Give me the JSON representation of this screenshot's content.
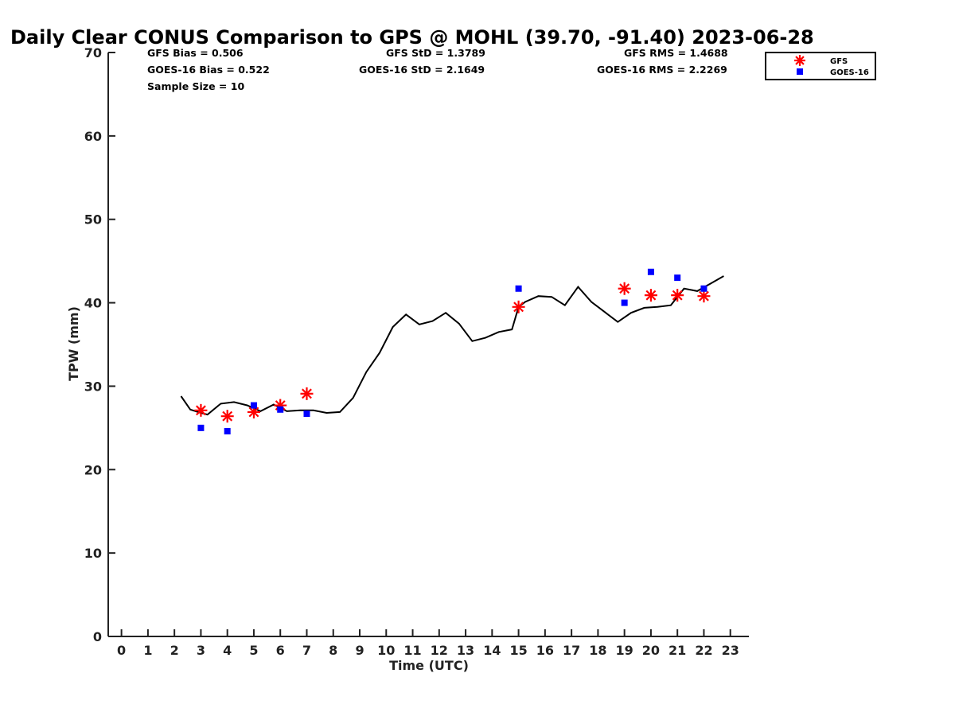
{
  "chart_data": {
    "type": "scatter",
    "title": "Daily Clear CONUS Comparison to GPS @ MOHL (39.70, -91.40) 2023-06-28",
    "xlabel": "Time (UTC)",
    "ylabel": "TPW (mm)",
    "xlim": [
      -0.5,
      23.7
    ],
    "ylim": [
      0,
      70
    ],
    "xticks": [
      0,
      1,
      2,
      3,
      4,
      5,
      6,
      7,
      8,
      9,
      10,
      11,
      12,
      13,
      14,
      15,
      16,
      17,
      18,
      19,
      20,
      21,
      22,
      23
    ],
    "yticks": [
      0,
      10,
      20,
      30,
      40,
      50,
      60,
      70
    ],
    "grid": false,
    "legend_position": "top-right-outside",
    "stats": {
      "gfs_bias": "GFS Bias = 0.506",
      "goes_bias": "GOES-16 Bias = 0.522",
      "sample_size": "Sample Size = 10",
      "gfs_std": "GFS StD = 1.3789",
      "goes_std": "GOES-16 StD = 2.1649",
      "gfs_rms": "GFS RMS = 1.4688",
      "goes_rms": "GOES-16 RMS = 2.2269"
    },
    "series": [
      {
        "name": "GFS",
        "marker": "asterisk",
        "color": "#ff0000",
        "points": [
          [
            3,
            27.1
          ],
          [
            4,
            26.4
          ],
          [
            5,
            26.9
          ],
          [
            6,
            27.7
          ],
          [
            7,
            29.1
          ],
          [
            15,
            39.5
          ],
          [
            19,
            41.7
          ],
          [
            20,
            40.9
          ],
          [
            21,
            40.9
          ],
          [
            22,
            40.8
          ]
        ]
      },
      {
        "name": "GOES-16",
        "marker": "square",
        "color": "#0000ff",
        "points": [
          [
            3,
            25.0
          ],
          [
            4,
            24.6
          ],
          [
            5,
            27.7
          ],
          [
            6,
            27.2
          ],
          [
            7,
            26.7
          ],
          [
            15,
            41.7
          ],
          [
            19,
            40.0
          ],
          [
            20,
            43.7
          ],
          [
            21,
            43.0
          ],
          [
            22,
            41.7
          ]
        ]
      },
      {
        "marker": "line",
        "color": "#000000",
        "points": [
          [
            2.25,
            28.8
          ],
          [
            2.6,
            27.2
          ],
          [
            3,
            26.8
          ],
          [
            3.25,
            26.6
          ],
          [
            3.75,
            27.9
          ],
          [
            4.25,
            28.1
          ],
          [
            4.75,
            27.7
          ],
          [
            5.25,
            27.0
          ],
          [
            5.75,
            27.8
          ],
          [
            6.25,
            27.0
          ],
          [
            6.75,
            27.1
          ],
          [
            7.25,
            27.1
          ],
          [
            7.75,
            26.8
          ],
          [
            8.25,
            26.9
          ],
          [
            8.75,
            28.6
          ],
          [
            9.25,
            31.7
          ],
          [
            9.75,
            34.0
          ],
          [
            10.25,
            37.1
          ],
          [
            10.75,
            38.6
          ],
          [
            11.25,
            37.4
          ],
          [
            11.75,
            37.8
          ],
          [
            12.25,
            38.8
          ],
          [
            12.75,
            37.5
          ],
          [
            13.25,
            35.4
          ],
          [
            13.75,
            35.8
          ],
          [
            14.25,
            36.5
          ],
          [
            14.75,
            36.8
          ],
          [
            15,
            39.5
          ],
          [
            15.25,
            40.1
          ],
          [
            15.75,
            40.8
          ],
          [
            16.25,
            40.7
          ],
          [
            16.75,
            39.7
          ],
          [
            17.25,
            41.9
          ],
          [
            17.75,
            40.1
          ],
          [
            18.25,
            38.9
          ],
          [
            18.75,
            37.7
          ],
          [
            19.25,
            38.8
          ],
          [
            19.75,
            39.4
          ],
          [
            20.25,
            39.5
          ],
          [
            20.75,
            39.7
          ],
          [
            21.25,
            41.7
          ],
          [
            21.75,
            41.4
          ],
          [
            22.25,
            42.3
          ],
          [
            22.75,
            43.2
          ]
        ]
      }
    ]
  }
}
